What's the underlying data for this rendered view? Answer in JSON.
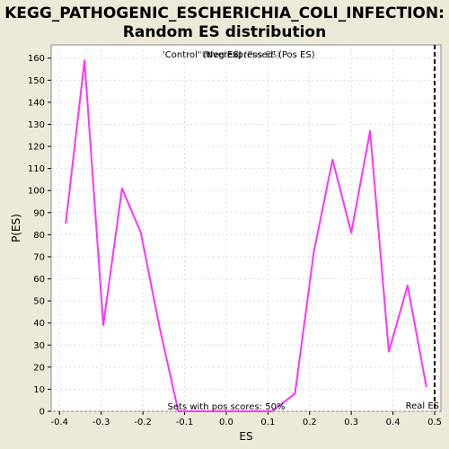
{
  "chart_data": {
    "type": "line",
    "title": "KEGG_PATHOGENIC_ESCHERICHIA_COLI_INFECTION:",
    "subtitle": "Random ES distribution",
    "xlabel": "ES",
    "ylabel": "P(ES)",
    "xlim": [
      -0.42,
      0.515
    ],
    "ylim": [
      0,
      166
    ],
    "xticks": [
      -0.4,
      -0.3,
      -0.2,
      -0.1,
      0.0,
      0.1,
      0.2,
      0.3,
      0.4,
      0.5
    ],
    "xtick_labels": [
      "-0.4",
      "-0.3",
      "-0.2",
      "-0.1",
      "0.0",
      "0.1",
      "0.2",
      "0.3",
      "0.4",
      "0.5"
    ],
    "yticks": [
      0,
      10,
      20,
      30,
      40,
      50,
      60,
      70,
      80,
      90,
      100,
      110,
      120,
      130,
      140,
      150,
      160
    ],
    "grid": true,
    "series": [
      {
        "color": "#ff33ff",
        "x": [
          -0.385,
          -0.34,
          -0.295,
          -0.25,
          -0.205,
          -0.16,
          -0.115,
          -0.07,
          -0.025,
          0.02,
          0.065,
          0.11,
          0.165,
          0.21,
          0.255,
          0.3,
          0.345,
          0.39,
          0.435,
          0.48
        ],
        "y": [
          85,
          159,
          39,
          101,
          81,
          38,
          0,
          0,
          0,
          0,
          0,
          0,
          8,
          72,
          114,
          81,
          127,
          27,
          57,
          11
        ]
      }
    ],
    "real_es": 0.5,
    "real_es_label": "Real ES",
    "legend_neg": "'Control' (Neg ES)",
    "legend_pos": "'Infected' (Pos ES)",
    "legend_pos_extra": "'overexpressed' (Pos ES)",
    "annotation": "Sets with pos scores: 50%"
  },
  "colors": {
    "line": "#ff33ff",
    "neg_label": "#3333cc",
    "pos_label": "#cc3333",
    "plot_bg": "#ffffff",
    "page_bg": "#ece9d8"
  }
}
